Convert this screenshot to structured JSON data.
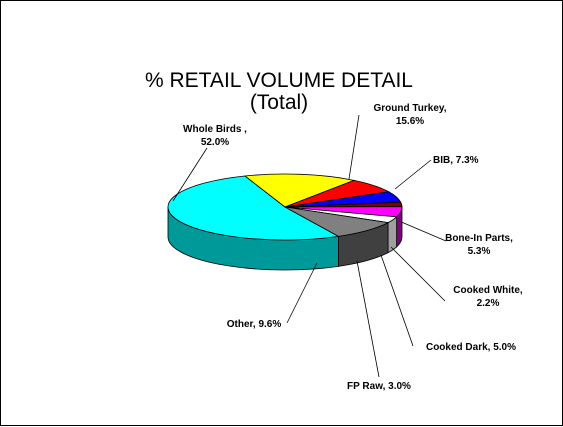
{
  "chart_data": {
    "type": "pie",
    "style": "3d",
    "title_lines": [
      "% RETAIL VOLUME DETAIL",
      "(Total)"
    ],
    "slices": [
      {
        "name": "Whole Birds",
        "value": 52.0,
        "color": "#00FFFF",
        "side_color": "#009999",
        "label_lines": [
          "Whole Birds ,",
          "52.0%"
        ]
      },
      {
        "name": "Ground Turkey",
        "value": 15.6,
        "color": "#FFFF00",
        "side_color": "#999900",
        "label_lines": [
          "Ground Turkey,",
          "15.6%"
        ]
      },
      {
        "name": "BIB",
        "value": 7.3,
        "color": "#FF0000",
        "side_color": "#990000",
        "label_lines": [
          "BIB, 7.3%"
        ]
      },
      {
        "name": "Bone-In Parts",
        "value": 5.3,
        "color": "#0000FF",
        "side_color": "#000099",
        "label_lines": [
          "Bone-In Parts,",
          "5.3%"
        ]
      },
      {
        "name": "Cooked White",
        "value": 2.2,
        "color": "#800000",
        "side_color": "#4D0000",
        "label_lines": [
          "Cooked White,",
          "2.2%"
        ]
      },
      {
        "name": "Cooked Dark",
        "value": 5.0,
        "color": "#FF00FF",
        "side_color": "#800080",
        "label_lines": [
          "Cooked Dark, 5.0%"
        ]
      },
      {
        "name": "FP Raw",
        "value": 3.0,
        "color": "#FFFFFF",
        "side_color": "#A0A0A0",
        "label_lines": [
          "FP Raw, 3.0%"
        ]
      },
      {
        "name": "Other",
        "value": 9.6,
        "color": "#808080",
        "side_color": "#404040",
        "label_lines": [
          "Other, 9.6%"
        ]
      }
    ]
  }
}
